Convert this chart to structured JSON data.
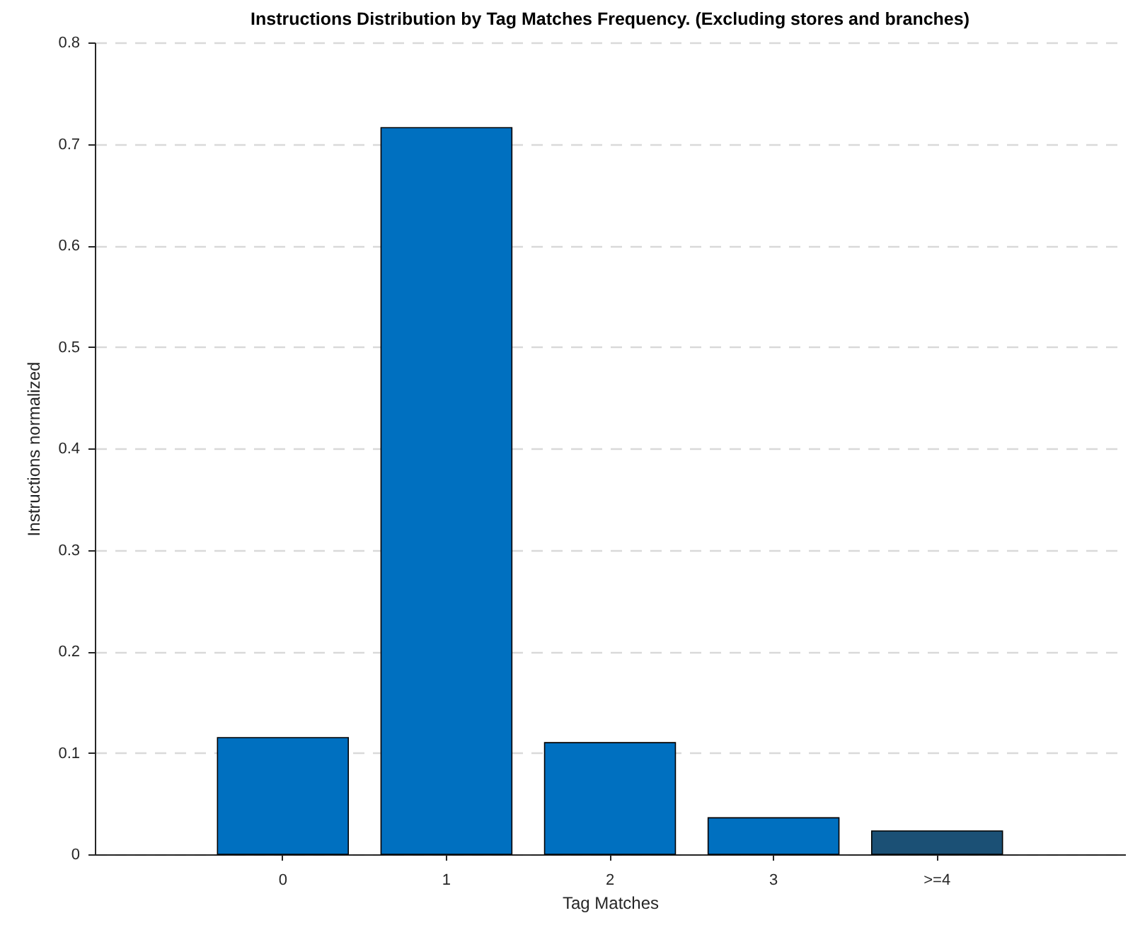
{
  "chart_data": {
    "type": "bar",
    "title": "Instructions Distribution by Tag Matches Frequency. (Excluding stores and branches)",
    "xlabel": "Tag Matches",
    "ylabel": "Instructions normalized",
    "categories": [
      "0",
      "1",
      "2",
      "3",
      ">=4"
    ],
    "values": [
      0.115,
      0.716,
      0.11,
      0.036,
      0.023
    ],
    "colors": [
      "#0070c0",
      "#0070c0",
      "#0070c0",
      "#0070c0",
      "#1b5075"
    ],
    "ylim": [
      0,
      0.8
    ],
    "yticks": [
      0,
      0.1,
      0.2,
      0.3,
      0.4,
      0.5,
      0.6,
      0.7,
      0.8
    ],
    "grid": "y"
  }
}
